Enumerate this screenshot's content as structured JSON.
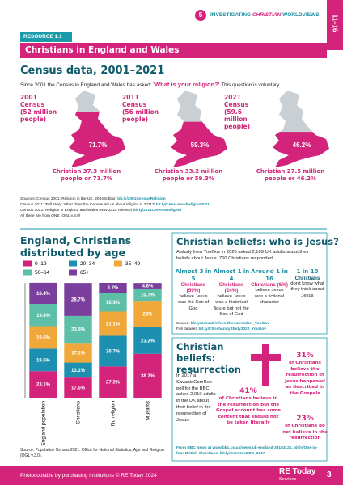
{
  "header": {
    "badge": "5",
    "kicker_pre": "INVESTIGATING ",
    "kicker_em": "CHRISTIAN",
    "kicker_post": " WORLDVIEWS",
    "tab": "11–16"
  },
  "resource": "RESOURCE 1.1",
  "banner": "Christians in England and Wales",
  "census": {
    "heading": "Census data, 2001–2021",
    "intro_pre": "Since 2001 the Census in England and Wales has asked: ",
    "intro_q": "'What is your religion?'",
    "intro_post": " This question is voluntary.",
    "maps": [
      {
        "year": "2001",
        "label": "Census",
        "people": "(52 million people)",
        "pct": "71.7%",
        "caption": "Christian 37.3 million people or 71.7%"
      },
      {
        "year": "2011",
        "label": "Census",
        "people": "(56 million people)",
        "pct": "59.3%",
        "caption": "Christian 33.2 million people or 59.3%"
      },
      {
        "year": "2021",
        "label": "Census",
        "people": "(59.6 million people)",
        "pct": "46.2%",
        "caption": "Christian 27.5 million people or 46.2%"
      }
    ],
    "sources": [
      {
        "text": "Sources: Census 2001: Religion in the UK, 2004 Edition ",
        "link": "bit.ly/2001CensusReligion"
      },
      {
        "text": "Census 2011: 'Full story: What does the Census tell us about religion in 2011?' ",
        "link": "bit.ly/Censusandreligion2011"
      },
      {
        "text": "Census 2021: Religion in England and Wales (Nov 2022 release) ",
        "link": "bit.ly/2021CensusReligion"
      },
      {
        "text": "All three are from ONS (OGL v.3.0)"
      }
    ]
  },
  "chart_data": {
    "type": "stacked_bar",
    "title": "England, Christians distributed by age",
    "categories": [
      "England population",
      "Christians",
      "No religion",
      "Muslims"
    ],
    "ylim": [
      0,
      100
    ],
    "series": [
      {
        "name": "0–19",
        "color": "#d4237a",
        "values": [
          23.1,
          17.5,
          27.2,
          38.2
        ],
        "value_labels": [
          "23.1%",
          "17.5%",
          "27.2%",
          "38.2%"
        ]
      },
      {
        "name": "20–34",
        "color": "#1d8fb0",
        "values": [
          19.6,
          13.1,
          26.7,
          23.2
        ],
        "value_labels": [
          "19.6%",
          "13.1%",
          "26.7%",
          "23.2%"
        ]
      },
      {
        "name": "35–49",
        "color": "#f0a83a",
        "values": [
          19.6,
          17.1,
          21.1,
          23
        ],
        "value_labels": [
          "19.6%",
          "17.1%",
          "21.1%",
          "23%"
        ]
      },
      {
        "name": "50–64",
        "color": "#5dbfa7",
        "values": [
          19.4,
          23.5,
          16.3,
          10.7
        ],
        "value_labels": [
          "19.4%",
          "23.5%",
          "16.3%",
          "10.7%"
        ]
      },
      {
        "name": "65+",
        "color": "#7a3e9d",
        "values": [
          18.4,
          28.7,
          8.7,
          4.8
        ],
        "value_labels": [
          "18.4%",
          "28.7%",
          "8.7%",
          "4.8%"
        ]
      }
    ]
  },
  "chart_source": "Source: Population Census 2021: Office for National Statistics, Age and Religion (OGL v.3.0).",
  "jesus": {
    "title": "Christian beliefs: who is Jesus?",
    "intro": "A study from YouGov in 2020 asked 2,169 UK adults about their beliefs about Jesus. 760 Christians responded:",
    "items": [
      {
        "lead": "Almost 3 in 5",
        "em": "Christians (59%)",
        "text": "believe Jesus was the Son of God"
      },
      {
        "lead": "Almost 1 in 4",
        "em": "Christians (24%)",
        "text": "believe Jesus was a historical figure but not the Son of God"
      },
      {
        "lead": "Around 1 in 16",
        "em": "Christians (6%)",
        "text": "believe Jesus was a fictional character"
      },
      {
        "lead": "1 in 10",
        "em": "Christians",
        "text": "don't know what they think about Jesus"
      }
    ],
    "sources": [
      {
        "text": "Source: ",
        "link": "bit.ly/JesusBirthAndResurrection_YouGov"
      },
      {
        "text": "Full dataset: ",
        "link": "bit.ly/ChristianityStudy2020_YouGov"
      }
    ]
  },
  "resurrection": {
    "title": "Christian beliefs: resurrection",
    "intro": "In 2017 a SavantaComRes poll for the BBC asked 2,010 adults in the UK about their belief in the resurrection of Jesus:",
    "items": [
      {
        "pct": "41%",
        "text": "of Christians believe in the resurrection but the Gospel account has some content that should not be taken literally"
      },
      {
        "pct": "31%",
        "text": "of Christians believe the resurrection of Jesus happened as described in the Gospels"
      },
      {
        "pct": "23%",
        "text": "of Christians do not believe in the resurrection"
      }
    ],
    "source": "From BBC News at www.bbc.co.uk/news/uk-england-39153121, bit.ly/One-in-four-British-Christians, bit.ly/ComResBBC_2017"
  },
  "footer": {
    "note": "Photocopiable by purchasing institutions © RE Today 2024",
    "logo": "RE Today",
    "logo_sub": "Services",
    "page": "3"
  }
}
